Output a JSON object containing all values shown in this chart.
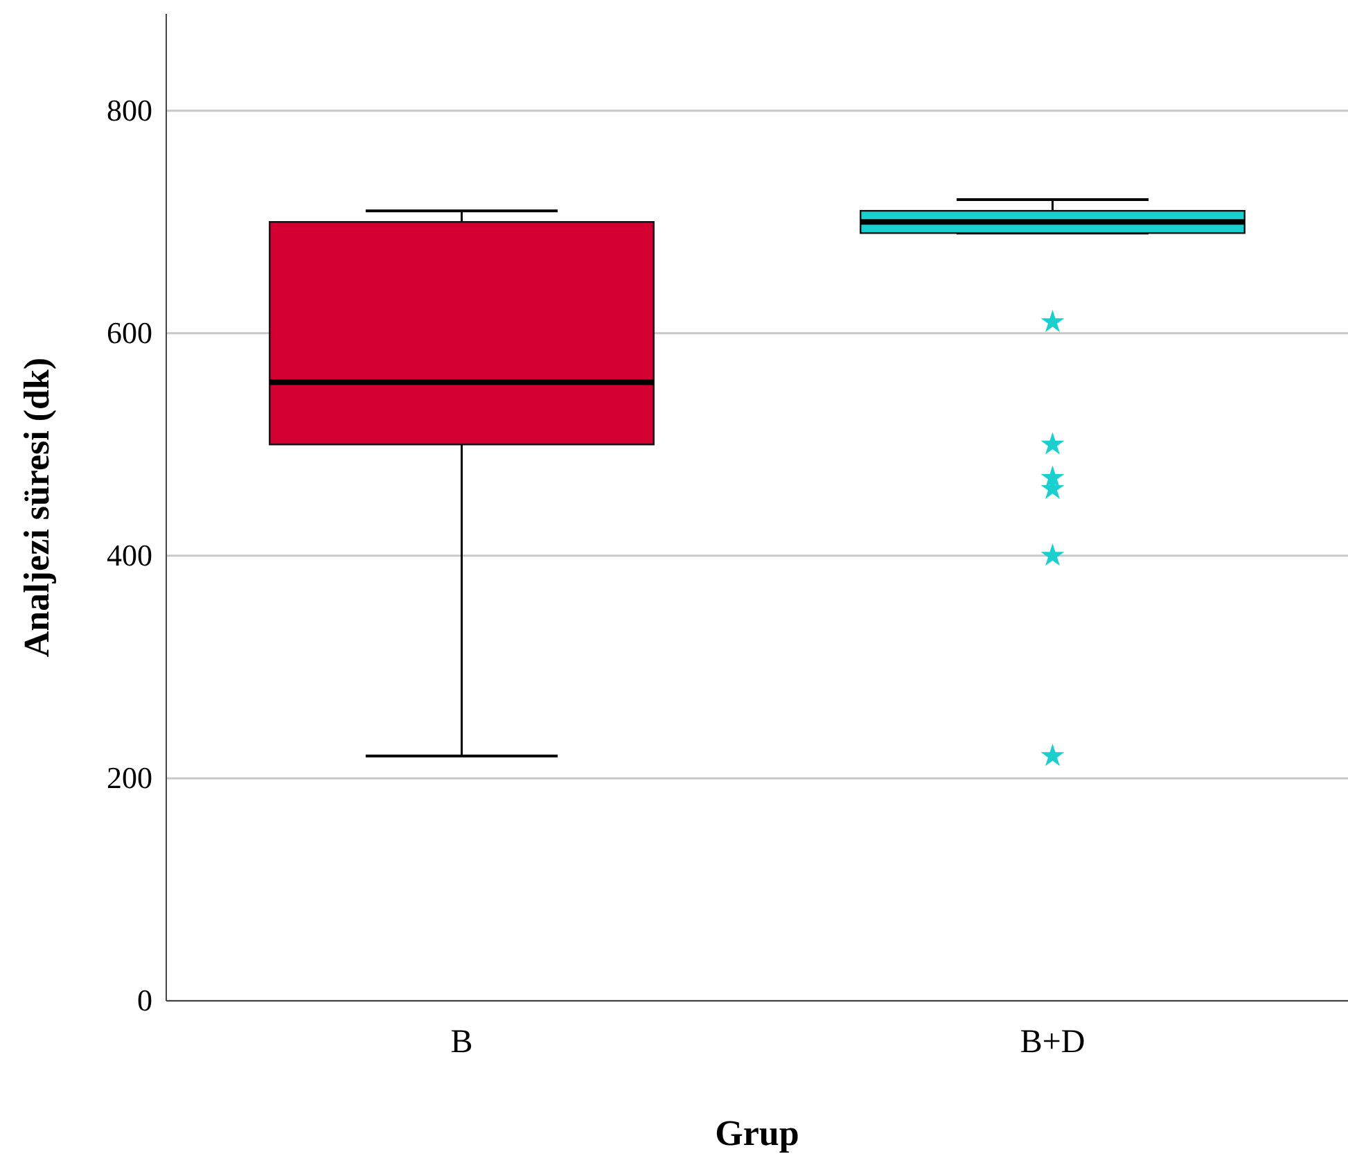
{
  "chart_data": {
    "type": "box",
    "xlabel": "Grup",
    "ylabel": "Analjezi süresi (dk)",
    "categories": [
      "B",
      "B+D"
    ],
    "colors": [
      "#d50032",
      "#1ccfcf"
    ],
    "boxes": [
      {
        "low": 220,
        "q1": 500,
        "median": 556,
        "q3": 700,
        "high": 710
      },
      {
        "low": 690,
        "q1": 690,
        "median": 700,
        "q3": 710,
        "high": 720,
        "outliers": [
          610,
          500,
          470,
          460,
          400,
          220
        ]
      }
    ],
    "ylim": [
      0,
      887
    ],
    "yticks": [
      0,
      200,
      400,
      600,
      800
    ],
    "grid": "y",
    "marker": "star"
  }
}
